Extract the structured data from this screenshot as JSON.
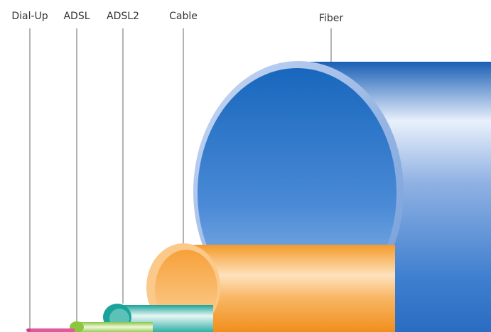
{
  "pipes": [
    {
      "id": "dialup",
      "label": "Dial-Up",
      "color": "#e05a9c"
    },
    {
      "id": "adsl",
      "label": "ADSL",
      "color": "#8cc63f"
    },
    {
      "id": "adsl2",
      "label": "ADSL2",
      "color": "#1aa39a"
    },
    {
      "id": "cable",
      "label": "Cable",
      "color": "#f7941d"
    },
    {
      "id": "fiber",
      "label": "Fiber",
      "color": "#2f78c8"
    }
  ],
  "colors": {
    "leader_line": "#9a9a9a",
    "background": "#ffffff"
  }
}
